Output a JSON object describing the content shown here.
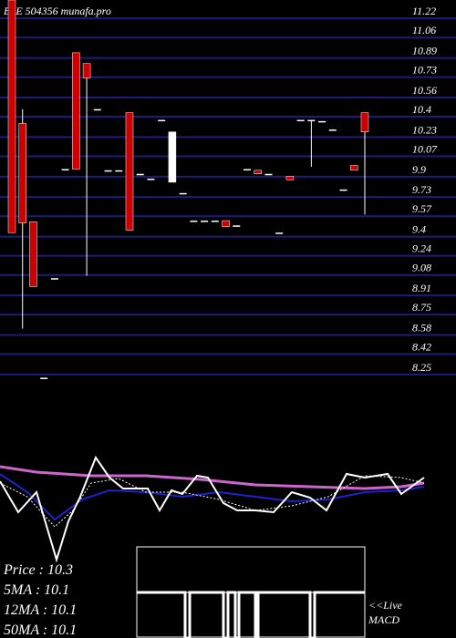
{
  "chart_data": {
    "type": "candlestick",
    "title": "BSE 504356  munafa.pro",
    "categories": [
      null,
      null,
      null,
      null,
      null,
      null,
      null,
      null,
      null,
      null,
      null,
      null,
      null,
      null,
      null,
      null,
      null,
      null,
      null,
      null,
      null,
      null,
      null,
      null,
      null,
      null,
      null,
      null,
      null,
      null,
      null,
      null,
      null,
      null
    ],
    "open": [
      11.32,
      10.29,
      9.47,
      8.17,
      9.0,
      9.91,
      10.88,
      10.79,
      10.41,
      9.9,
      9.9,
      10.38,
      9.87,
      9.83,
      10.32,
      9.8,
      9.71,
      9.48,
      9.48,
      9.48,
      9.48,
      9.44,
      9.91,
      9.9,
      9.87,
      9.38,
      9.85,
      10.32,
      10.32,
      10.31,
      10.24,
      9.74,
      9.94,
      10.38
    ],
    "high": [
      11.32,
      10.41,
      9.47,
      8.17,
      9.0,
      9.91,
      10.88,
      10.79,
      10.41,
      9.9,
      9.9,
      10.38,
      9.87,
      9.83,
      10.32,
      10.22,
      9.71,
      9.48,
      9.48,
      9.48,
      9.48,
      9.44,
      9.91,
      9.9,
      9.87,
      9.38,
      9.85,
      10.32,
      10.32,
      10.31,
      10.24,
      9.74,
      9.94,
      10.38
    ],
    "low": [
      9.38,
      8.58,
      8.93,
      8.17,
      9.0,
      9.91,
      9.91,
      9.02,
      10.41,
      9.9,
      9.9,
      9.4,
      9.87,
      9.83,
      10.32,
      9.8,
      9.71,
      9.48,
      9.48,
      9.48,
      9.43,
      9.44,
      9.91,
      9.87,
      9.87,
      9.38,
      9.82,
      10.32,
      9.93,
      10.31,
      10.24,
      9.74,
      9.9,
      9.53
    ],
    "close": [
      9.38,
      9.46,
      8.93,
      8.17,
      9.0,
      9.91,
      9.91,
      10.67,
      10.41,
      9.9,
      9.9,
      9.4,
      9.87,
      9.83,
      10.32,
      10.22,
      9.71,
      9.48,
      9.48,
      9.48,
      9.43,
      9.44,
      9.91,
      9.87,
      9.87,
      9.38,
      9.82,
      10.32,
      10.32,
      10.31,
      10.24,
      9.74,
      9.9,
      10.22
    ],
    "up_color": "#ffffff",
    "down_color": "#cc0000",
    "grid_color": "#1c1c7a",
    "ylim": [
      8.12,
      11.32
    ],
    "yticks": [
      11.22,
      11.06,
      10.89,
      10.73,
      10.56,
      10.4,
      10.23,
      10.07,
      9.9,
      9.73,
      9.57,
      9.4,
      9.24,
      9.08,
      8.91,
      8.75,
      8.58,
      8.42,
      8.25
    ],
    "grid": true,
    "info": [
      "Price : 10.3",
      "5MA : 10.1",
      "12MA : 10.1",
      "50MA : 10.1"
    ],
    "macd_label": "<<Live\nMACD"
  }
}
